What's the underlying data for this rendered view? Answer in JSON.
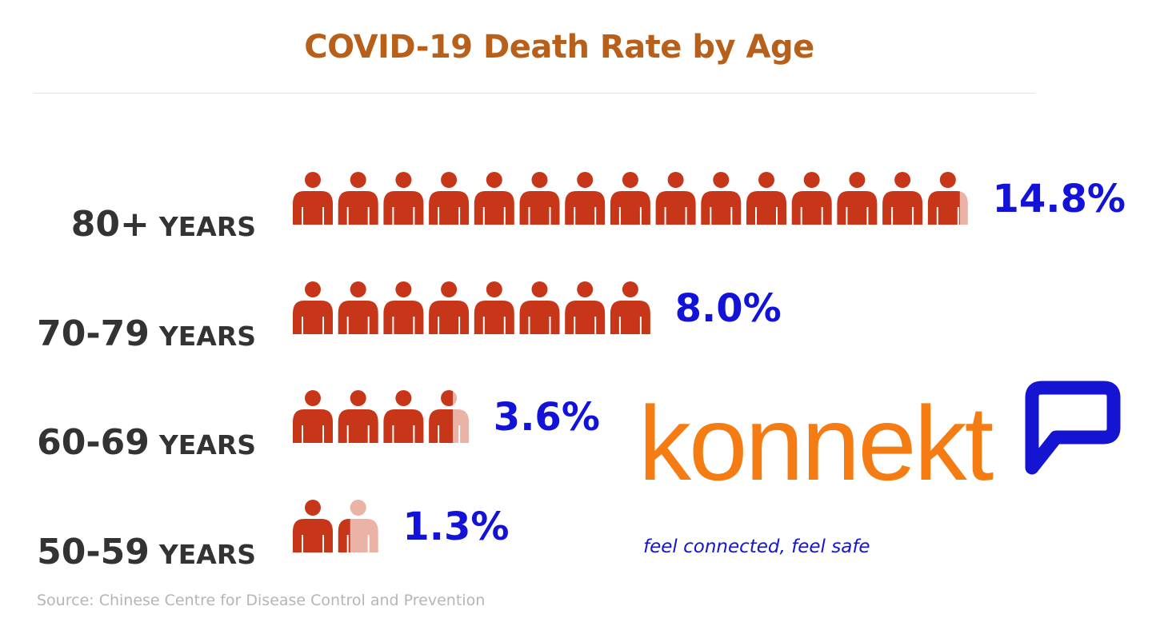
{
  "chart_data": {
    "type": "bar",
    "title": "COVID-19 Death Rate by Age",
    "categories": [
      "80+ YEARS",
      "70-79 YEARS",
      "60-69 YEARS",
      "50-59 YEARS"
    ],
    "rows": [
      {
        "age": "80+",
        "unit": "YEARS",
        "value": 14.8,
        "value_label": "14.8%"
      },
      {
        "age": "70-79",
        "unit": "YEARS",
        "value": 8.0,
        "value_label": "8.0%"
      },
      {
        "age": "60-69",
        "unit": "YEARS",
        "value": 3.6,
        "value_label": "3.6%"
      },
      {
        "age": "50-59",
        "unit": "YEARS",
        "value": 1.3,
        "value_label": "1.3%"
      }
    ],
    "values": [
      14.8,
      8.0,
      3.6,
      1.3
    ],
    "icon": "person-icon",
    "source": "Source: Chinese Centre for Disease Control and Prevention"
  },
  "logo": {
    "wordmark": "konnekt",
    "tagline": "feel connected, feel safe",
    "icon": "speech-bubble-icon"
  },
  "colors": {
    "title": "#b8601a",
    "icon_fill": "#c8361a",
    "icon_faded": "#eab3a5",
    "value_text": "#1212d8",
    "logo_word": "#f47c12",
    "logo_blue": "#1414d2"
  }
}
